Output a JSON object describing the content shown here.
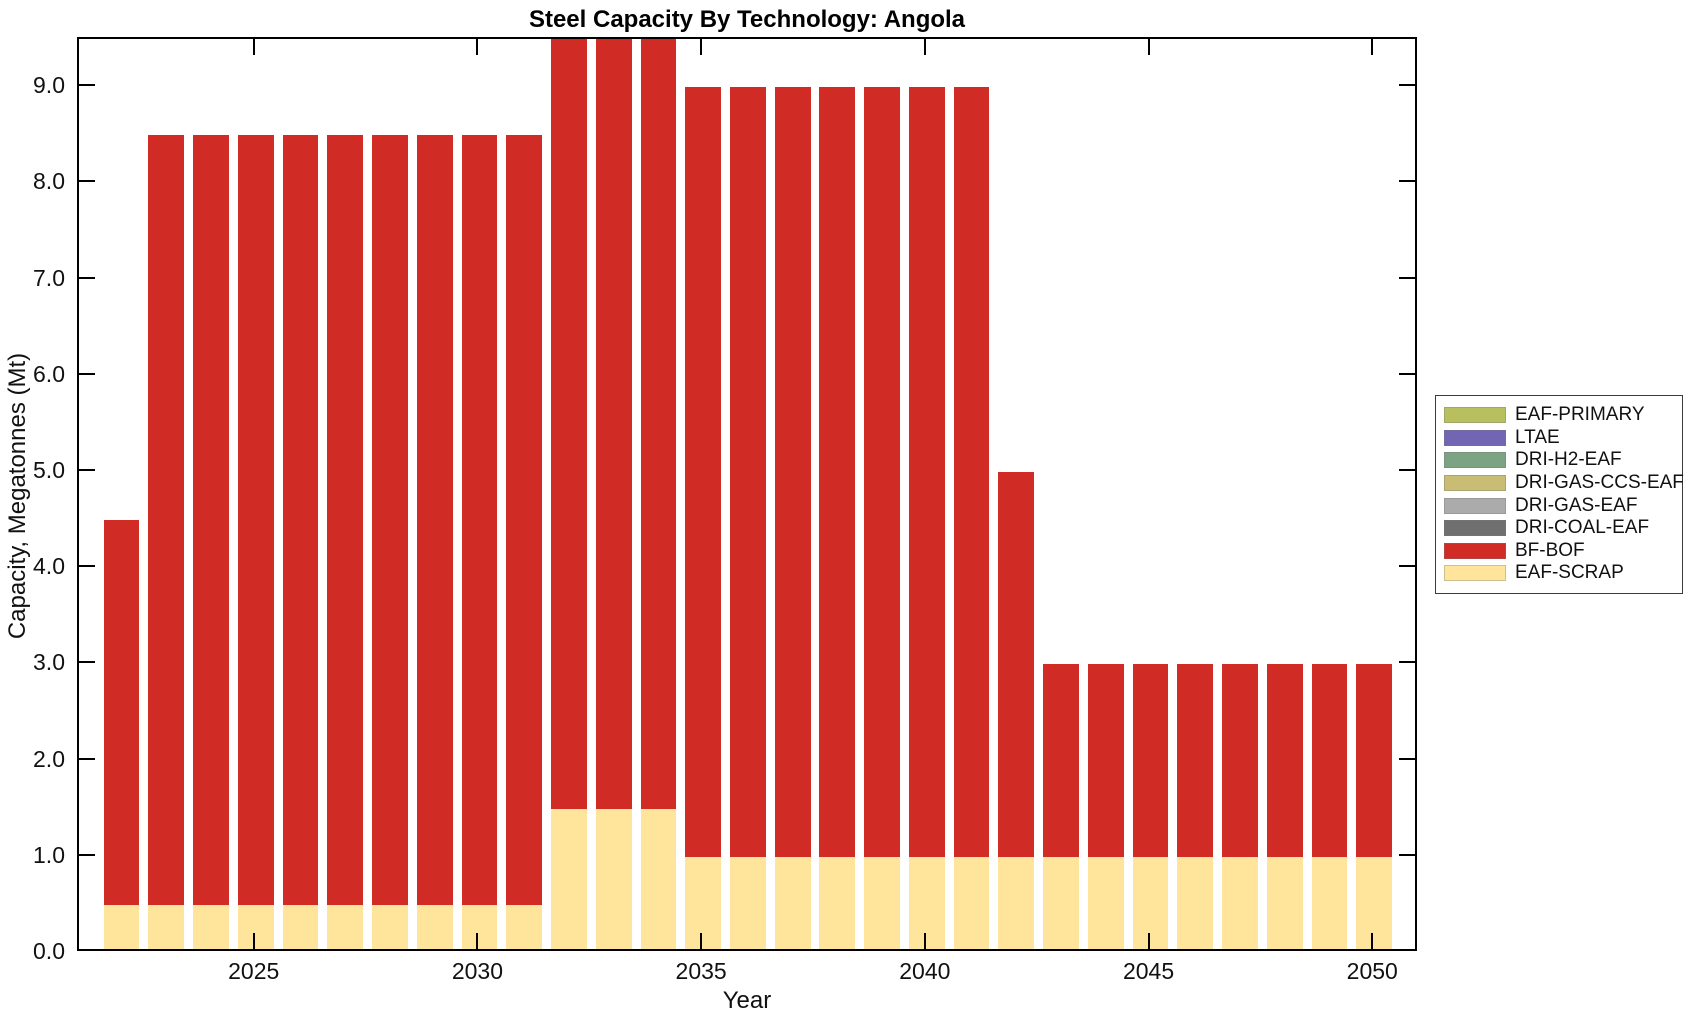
{
  "figure": {
    "title": "Steel Capacity By Technology: Angola",
    "xlabel": "Year",
    "ylabel": "Capacity, Megatonnes (Mt)"
  },
  "chart_data": {
    "type": "bar",
    "stacked": true,
    "title": "Steel Capacity By Technology: Angola",
    "xlabel": "Year",
    "ylabel": "Capacity, Megatonnes (Mt)",
    "grid": false,
    "legend_position": "right-outside",
    "background": "#ffffff",
    "axis_color": "#000000",
    "bar_width_ratio": 0.8,
    "xlim": [
      2021.05,
      2051.0
    ],
    "ylim": [
      0,
      9.5
    ],
    "xticks": [
      2025,
      2030,
      2035,
      2040,
      2045,
      2050
    ],
    "yticks": [
      0,
      1,
      2,
      3,
      4,
      5,
      6,
      7,
      8,
      9
    ],
    "ytick_labels": [
      "0.0",
      "1.0",
      "2.0",
      "3.0",
      "4.0",
      "5.0",
      "6.0",
      "7.0",
      "8.0",
      "9.0"
    ],
    "categories": [
      2022,
      2023,
      2024,
      2025,
      2026,
      2027,
      2028,
      2029,
      2030,
      2031,
      2032,
      2033,
      2034,
      2035,
      2036,
      2037,
      2038,
      2039,
      2040,
      2041,
      2042,
      2043,
      2044,
      2045,
      2046,
      2047,
      2048,
      2049,
      2050
    ],
    "series": [
      {
        "name": "EAF-PRIMARY",
        "color": "#b8bf5e",
        "values": [
          0,
          0,
          0,
          0,
          0,
          0,
          0,
          0,
          0,
          0,
          0,
          0,
          0,
          0,
          0,
          0,
          0,
          0,
          0,
          0,
          0,
          0,
          0,
          0,
          0,
          0,
          0,
          0,
          0
        ]
      },
      {
        "name": "LTAE",
        "color": "#7266b4",
        "values": [
          0,
          0,
          0,
          0,
          0,
          0,
          0,
          0,
          0,
          0,
          0,
          0,
          0,
          0,
          0,
          0,
          0,
          0,
          0,
          0,
          0,
          0,
          0,
          0,
          0,
          0,
          0,
          0,
          0
        ]
      },
      {
        "name": "DRI-H2-EAF",
        "color": "#7ca384",
        "values": [
          0,
          0,
          0,
          0,
          0,
          0,
          0,
          0,
          0,
          0,
          0,
          0,
          0,
          0,
          0,
          0,
          0,
          0,
          0,
          0,
          0,
          0,
          0,
          0,
          0,
          0,
          0,
          0,
          0
        ]
      },
      {
        "name": "DRI-GAS-CCS-EAF",
        "color": "#c9bc74",
        "values": [
          0,
          0,
          0,
          0,
          0,
          0,
          0,
          0,
          0,
          0,
          0,
          0,
          0,
          0,
          0,
          0,
          0,
          0,
          0,
          0,
          0,
          0,
          0,
          0,
          0,
          0,
          0,
          0,
          0
        ]
      },
      {
        "name": "DRI-GAS-EAF",
        "color": "#ababab",
        "values": [
          0,
          0,
          0,
          0,
          0,
          0,
          0,
          0,
          0,
          0,
          0,
          0,
          0,
          0,
          0,
          0,
          0,
          0,
          0,
          0,
          0,
          0,
          0,
          0,
          0,
          0,
          0,
          0,
          0
        ]
      },
      {
        "name": "DRI-COAL-EAF",
        "color": "#6f6f6f",
        "values": [
          0,
          0,
          0,
          0,
          0,
          0,
          0,
          0,
          0,
          0,
          0,
          0,
          0,
          0,
          0,
          0,
          0,
          0,
          0,
          0,
          0,
          0,
          0,
          0,
          0,
          0,
          0,
          0,
          0
        ]
      },
      {
        "name": "BF-BOF",
        "color": "#d12b25",
        "values": [
          4,
          8,
          8,
          8,
          8,
          8,
          8,
          8,
          8,
          8,
          8,
          8,
          8,
          8,
          8,
          8,
          8,
          8,
          8,
          8,
          4,
          2,
          2,
          2,
          2,
          2,
          2,
          2,
          2
        ]
      },
      {
        "name": "EAF-SCRAP",
        "color": "#ffe49c",
        "values": [
          0.5,
          0.5,
          0.5,
          0.5,
          0.5,
          0.5,
          0.5,
          0.5,
          0.5,
          0.5,
          1.5,
          1.5,
          1.5,
          1,
          1,
          1,
          1,
          1,
          1,
          1,
          1,
          1,
          1,
          1,
          1,
          1,
          1,
          1,
          1
        ]
      }
    ],
    "stack_note": "EAF-SCRAP is the bottom stack segment, BF-BOF stacked above it; all other technologies are zero in every year."
  }
}
